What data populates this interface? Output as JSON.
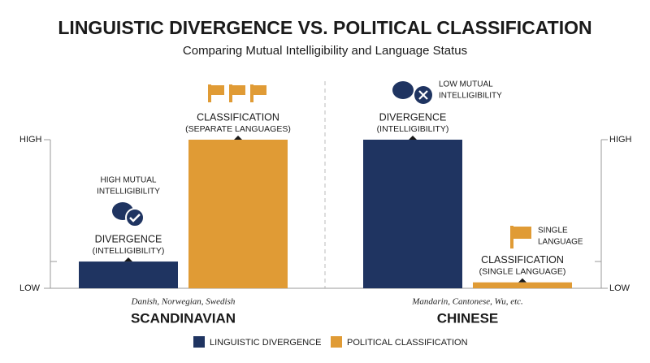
{
  "chart_data": {
    "type": "bar",
    "title": "LINGUISTIC DIVERGENCE VS. POLITICAL CLASSIFICATION",
    "subtitle": "Comparing Mutual Intelligibility and Language Status",
    "categories": [
      "SCANDINAVIAN",
      "CHINESE"
    ],
    "category_notes": [
      "Danish, Norwegian, Swedish",
      "Mandarin, Cantonese, Wu, etc."
    ],
    "ylim": [
      0,
      10
    ],
    "yticks": [
      {
        "value": 0,
        "label": "LOW"
      },
      {
        "value": 10,
        "label": "HIGH"
      }
    ],
    "series": [
      {
        "name": "LINGUISTIC DIVERGENCE",
        "color": "#1f3461",
        "values": [
          1.8,
          10
        ],
        "labels": [
          [
            "DIVERGENCE",
            "(INTELLIGIBILITY)"
          ],
          [
            "DIVERGENCE",
            "(INTELLIGIBILITY)"
          ]
        ]
      },
      {
        "name": "POLITICAL CLASSIFICATION",
        "color": "#e09b35",
        "values": [
          10,
          0.4
        ],
        "labels": [
          [
            "CLASSIFICATION",
            "(SEPARATE LANGUAGES)"
          ],
          [
            "CLASSIFICATION",
            "(SINGLE LANGUAGE)"
          ]
        ]
      }
    ],
    "annotations": [
      [
        "HIGH MUTUAL",
        "INTELLIGIBILITY"
      ],
      [
        "LOW MUTUAL",
        "INTELLIGIBILITY"
      ],
      [
        "SINGLE",
        "LANGUAGE"
      ]
    ]
  }
}
